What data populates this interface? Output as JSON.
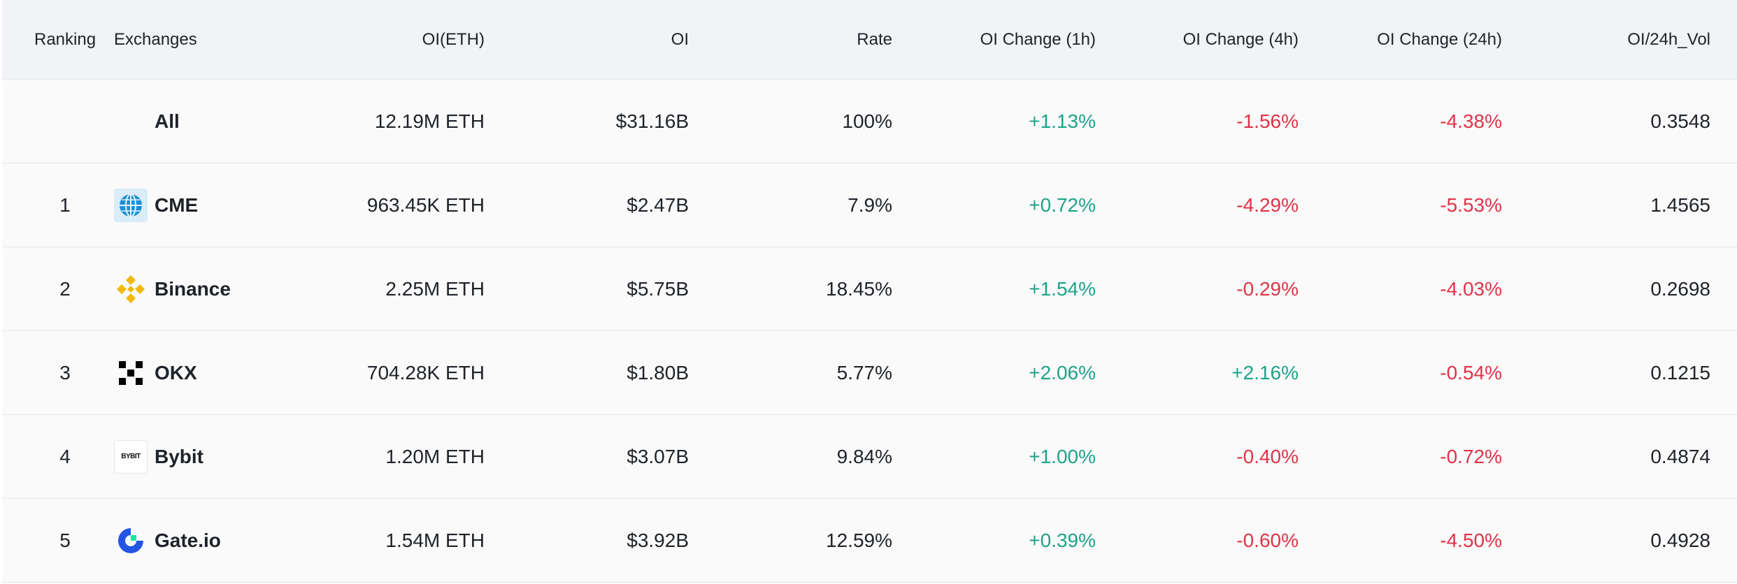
{
  "table": {
    "headers": {
      "ranking": "Ranking",
      "exchanges": "Exchanges",
      "oi_eth": "OI(ETH)",
      "oi": "OI",
      "rate": "Rate",
      "oi_change_1h": "OI Change (1h)",
      "oi_change_4h": "OI Change (4h)",
      "oi_change_24h": "OI Change (24h)",
      "oi_24h_vol": "OI/24h_Vol"
    },
    "rows": [
      {
        "rank": "",
        "exchange": "All",
        "logo": "",
        "oi_eth": "12.19M ETH",
        "oi": "$31.16B",
        "rate": "100%",
        "ch1": "+1.13%",
        "ch4": "-1.56%",
        "ch24": "-4.38%",
        "vol": "0.3548"
      },
      {
        "rank": "1",
        "exchange": "CME",
        "logo": "cme-globe-icon",
        "oi_eth": "963.45K ETH",
        "oi": "$2.47B",
        "rate": "7.9%",
        "ch1": "+0.72%",
        "ch4": "-4.29%",
        "ch24": "-5.53%",
        "vol": "1.4565"
      },
      {
        "rank": "2",
        "exchange": "Binance",
        "logo": "binance-icon",
        "oi_eth": "2.25M ETH",
        "oi": "$5.75B",
        "rate": "18.45%",
        "ch1": "+1.54%",
        "ch4": "-0.29%",
        "ch24": "-4.03%",
        "vol": "0.2698"
      },
      {
        "rank": "3",
        "exchange": "OKX",
        "logo": "okx-icon",
        "oi_eth": "704.28K ETH",
        "oi": "$1.80B",
        "rate": "5.77%",
        "ch1": "+2.06%",
        "ch4": "+2.16%",
        "ch24": "-0.54%",
        "vol": "0.1215"
      },
      {
        "rank": "4",
        "exchange": "Bybit",
        "logo": "bybit-icon",
        "logo_text": "BYBIT",
        "oi_eth": "1.20M ETH",
        "oi": "$3.07B",
        "rate": "9.84%",
        "ch1": "+1.00%",
        "ch4": "-0.40%",
        "ch24": "-0.72%",
        "vol": "0.4874"
      },
      {
        "rank": "5",
        "exchange": "Gate.io",
        "logo": "gateio-icon",
        "oi_eth": "1.54M ETH",
        "oi": "$3.92B",
        "rate": "12.59%",
        "ch1": "+0.39%",
        "ch4": "-0.60%",
        "ch24": "-4.50%",
        "vol": "0.4928"
      }
    ]
  },
  "colors": {
    "positive": "#1da389",
    "negative": "#e03346",
    "header_bg": "#f2f3f6",
    "row_bg": "#fafafa",
    "binance_yellow": "#f0b90b",
    "gate_blue": "#2354e6"
  }
}
